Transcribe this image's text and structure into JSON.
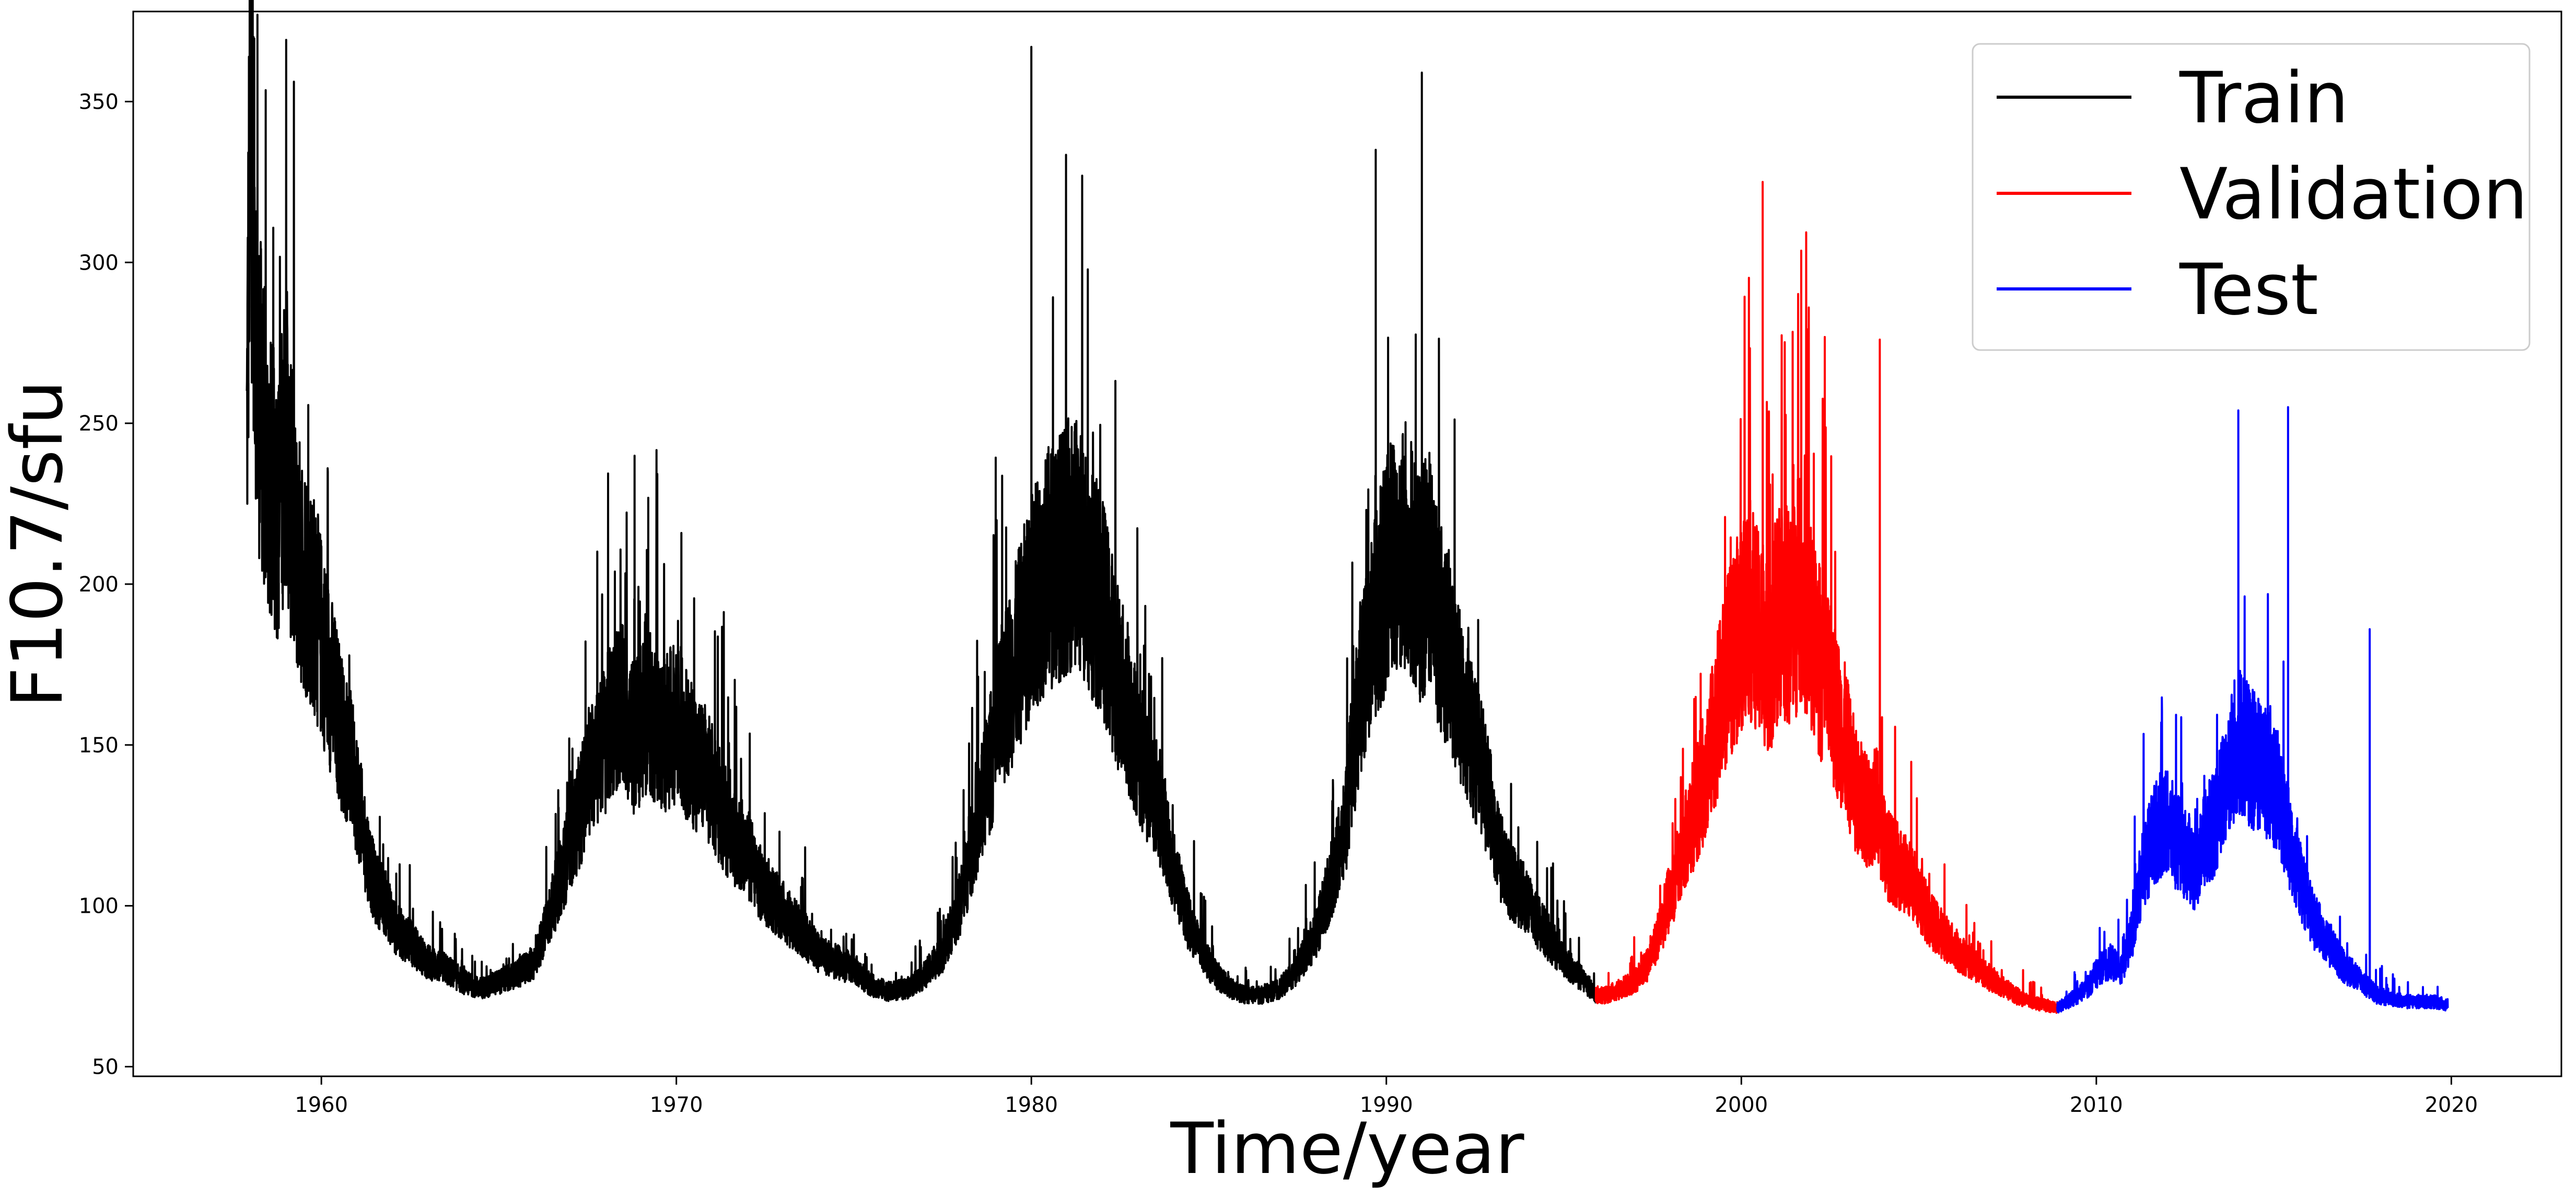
{
  "chart_data": {
    "type": "line",
    "title": "",
    "xlabel": "Time/year",
    "ylabel": "F10.7/sfu",
    "xlim": [
      1954.7,
      2023.1
    ],
    "ylim": [
      47,
      378
    ],
    "xticks": [
      1960,
      1970,
      1980,
      1990,
      2000,
      2010,
      2020
    ],
    "yticks": [
      50,
      100,
      150,
      200,
      250,
      300,
      350
    ],
    "legend": {
      "position": "top-right",
      "entries": [
        "Train",
        "Validation",
        "Test"
      ]
    },
    "grid": false,
    "series": [
      {
        "name": "Train",
        "color": "#000000",
        "x": [
          1957.9,
          1958.0,
          1958.2,
          1958.5,
          1958.8,
          1959.0,
          1959.2,
          1959.5,
          1959.8,
          1960.0,
          1960.3,
          1960.6,
          1960.9,
          1961.2,
          1961.5,
          1961.8,
          1962.1,
          1962.5,
          1963.0,
          1963.5,
          1964.0,
          1964.5,
          1965.0,
          1965.5,
          1966.0,
          1966.4,
          1966.8,
          1967.2,
          1967.6,
          1968.0,
          1968.4,
          1968.8,
          1969.2,
          1969.6,
          1970.0,
          1970.4,
          1970.8,
          1971.2,
          1971.6,
          1972.0,
          1972.4,
          1972.8,
          1973.2,
          1973.6,
          1974.0,
          1974.5,
          1975.0,
          1975.5,
          1976.0,
          1976.5,
          1977.0,
          1977.5,
          1978.0,
          1978.4,
          1978.8,
          1979.2,
          1979.6,
          1980.0,
          1980.4,
          1980.8,
          1981.2,
          1981.6,
          1982.0,
          1982.4,
          1982.8,
          1983.2,
          1983.6,
          1984.0,
          1984.4,
          1984.8,
          1985.2,
          1985.6,
          1986.0,
          1986.5,
          1987.0,
          1987.5,
          1988.0,
          1988.4,
          1988.8,
          1989.1,
          1989.4,
          1989.7,
          1990.0,
          1990.3,
          1990.6,
          1990.9,
          1991.2,
          1991.5,
          1991.8,
          1992.1,
          1992.4,
          1992.7,
          1993.0,
          1993.3,
          1993.6,
          1994.0,
          1994.4,
          1994.8,
          1995.2,
          1995.6,
          1995.9
        ],
        "y": [
          240,
          345,
          260,
          230,
          220,
          245,
          210,
          200,
          190,
          180,
          165,
          150,
          140,
          120,
          105,
          100,
          92,
          88,
          82,
          80,
          76,
          74,
          76,
          78,
          82,
          95,
          110,
          125,
          140,
          150,
          160,
          150,
          158,
          150,
          155,
          145,
          140,
          130,
          120,
          115,
          105,
          100,
          95,
          90,
          85,
          82,
          80,
          75,
          73,
          74,
          78,
          85,
          100,
          120,
          140,
          160,
          175,
          190,
          200,
          205,
          210,
          200,
          190,
          170,
          155,
          140,
          130,
          110,
          95,
          85,
          78,
          74,
          72,
          72,
          74,
          80,
          90,
          105,
          120,
          150,
          175,
          185,
          200,
          205,
          210,
          195,
          200,
          185,
          175,
          160,
          150,
          140,
          125,
          110,
          105,
          100,
          92,
          86,
          80,
          76,
          72
        ]
      },
      {
        "name": "Validation",
        "color": "#ff0000",
        "x": [
          1995.9,
          1996.2,
          1996.6,
          1997.0,
          1997.4,
          1997.8,
          1998.2,
          1998.6,
          1999.0,
          1999.3,
          1999.6,
          1999.9,
          2000.2,
          2000.5,
          2000.8,
          2001.1,
          2001.4,
          2001.7,
          2002.0,
          2002.3,
          2002.6,
          2002.9,
          2003.2,
          2003.5,
          2003.8,
          2004.1,
          2004.5,
          2004.9,
          2005.3,
          2005.7,
          2006.1,
          2006.5,
          2006.9,
          2007.3,
          2007.7,
          2008.1,
          2008.5,
          2008.9
        ],
        "y": [
          72,
          72,
          74,
          76,
          82,
          95,
          110,
          125,
          140,
          155,
          170,
          180,
          190,
          180,
          175,
          190,
          185,
          195,
          180,
          170,
          160,
          150,
          135,
          128,
          130,
          115,
          110,
          105,
          95,
          90,
          85,
          82,
          78,
          75,
          72,
          70,
          69,
          68
        ]
      },
      {
        "name": "Test",
        "color": "#0000ff",
        "x": [
          2008.9,
          2009.2,
          2009.5,
          2009.8,
          2010.1,
          2010.4,
          2010.7,
          2011.0,
          2011.3,
          2011.6,
          2011.9,
          2012.2,
          2012.5,
          2012.8,
          2013.1,
          2013.4,
          2013.7,
          2014.0,
          2014.3,
          2014.6,
          2014.9,
          2015.2,
          2015.5,
          2015.8,
          2016.1,
          2016.4,
          2016.7,
          2017.0,
          2017.3,
          2017.6,
          2017.9,
          2018.3,
          2018.7,
          2019.1,
          2019.5,
          2019.9
        ],
        "y": [
          68,
          70,
          72,
          75,
          80,
          82,
          80,
          90,
          110,
          120,
          125,
          120,
          115,
          110,
          120,
          125,
          140,
          150,
          145,
          140,
          140,
          130,
          115,
          105,
          95,
          90,
          85,
          80,
          78,
          75,
          72,
          71,
          70,
          70,
          70,
          69
        ]
      }
    ],
    "annotations": [
      {
        "series": "Train",
        "x": 1958.2,
        "y": 377
      },
      {
        "series": "Train",
        "x": 1980.0,
        "y": 367
      },
      {
        "series": "Train",
        "x": 1991.0,
        "y": 359
      },
      {
        "series": "Train",
        "x": 1989.7,
        "y": 335
      },
      {
        "series": "Validation",
        "x": 2000.6,
        "y": 325
      },
      {
        "series": "Validation",
        "x": 2003.9,
        "y": 276
      },
      {
        "series": "Validation",
        "x": 2001.9,
        "y": 286
      },
      {
        "series": "Test",
        "x": 2014.0,
        "y": 254
      },
      {
        "series": "Test",
        "x": 2015.4,
        "y": 255
      },
      {
        "series": "Test",
        "x": 2017.7,
        "y": 186
      }
    ]
  }
}
